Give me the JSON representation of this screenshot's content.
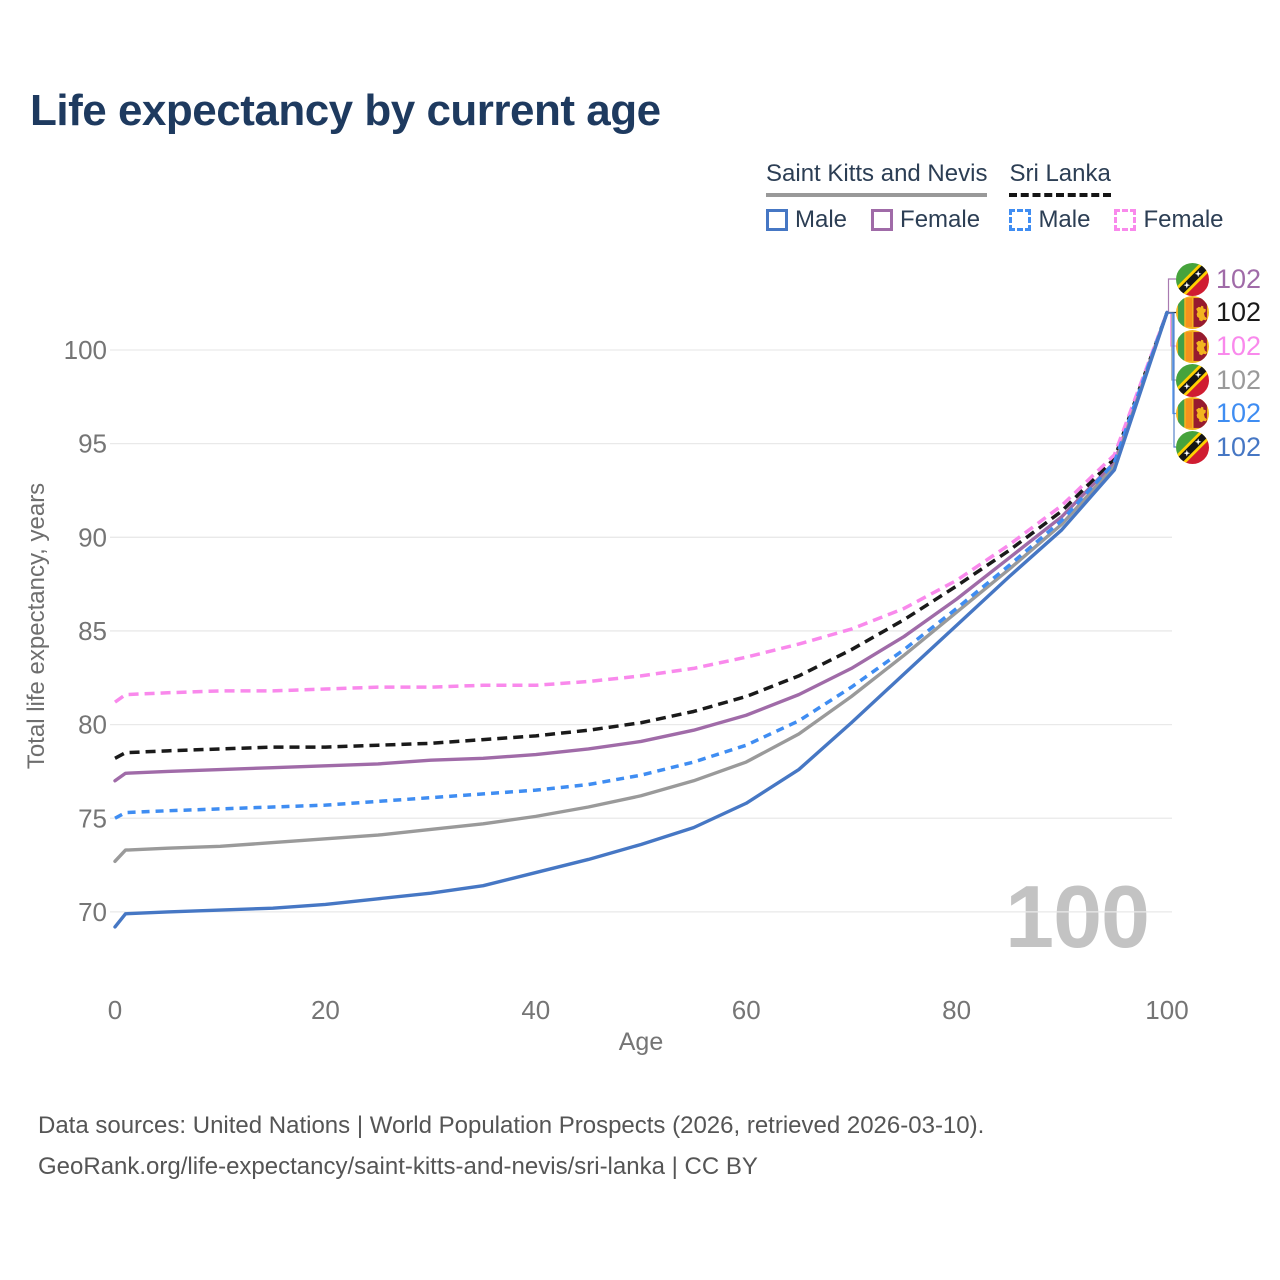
{
  "title": "Life expectancy by current age",
  "watermark": "100",
  "legend": {
    "groups": [
      {
        "name": "Saint Kitts and Nevis",
        "line_style": "solid",
        "line_color": "#999999",
        "items": [
          {
            "label": "Male",
            "series": "skn_male"
          },
          {
            "label": "Female",
            "series": "skn_female"
          }
        ]
      },
      {
        "name": "Sri Lanka",
        "line_style": "dashed",
        "line_color": "#151515",
        "items": [
          {
            "label": "Male",
            "series": "lk_male"
          },
          {
            "label": "Female",
            "series": "lk_female"
          }
        ]
      }
    ]
  },
  "chart_data": {
    "type": "line",
    "title": "Life expectancy by current age",
    "xlabel": "Age",
    "ylabel": "Total life expectancy, years",
    "xlim": [
      0,
      100
    ],
    "ylim": [
      68.5,
      103
    ],
    "xticks": [
      0,
      20,
      40,
      60,
      80,
      100
    ],
    "yticks": [
      70,
      75,
      80,
      85,
      90,
      95,
      100
    ],
    "grid": "horizontal-only",
    "legend_position": "top-right",
    "x": [
      0,
      1,
      5,
      10,
      15,
      20,
      25,
      30,
      35,
      40,
      45,
      50,
      55,
      60,
      65,
      70,
      75,
      80,
      85,
      90,
      95,
      100
    ],
    "series": [
      {
        "id": "skn_female",
        "name": "Saint Kitts and Nevis — Female",
        "country": "Saint Kitts and Nevis",
        "sex": "Female",
        "color": "#a06ba8",
        "dash": false,
        "flag": "kn",
        "end_label": "102",
        "values": [
          77.0,
          77.4,
          77.5,
          77.6,
          77.7,
          77.8,
          77.9,
          78.1,
          78.2,
          78.4,
          78.7,
          79.1,
          79.7,
          80.5,
          81.6,
          83.0,
          84.7,
          86.7,
          88.9,
          91.1,
          94.0,
          102.0
        ]
      },
      {
        "id": "lk_total",
        "name": "Sri Lanka — Total",
        "country": "Sri Lanka",
        "sex": "Total",
        "color": "#1a1a1a",
        "dash": true,
        "flag": "lk",
        "end_label": "102",
        "values": [
          78.2,
          78.5,
          78.6,
          78.7,
          78.8,
          78.8,
          78.9,
          79.0,
          79.2,
          79.4,
          79.7,
          80.1,
          80.7,
          81.5,
          82.6,
          84.0,
          85.6,
          87.4,
          89.3,
          91.4,
          94.2,
          102.0
        ]
      },
      {
        "id": "lk_female",
        "name": "Sri Lanka — Female",
        "country": "Sri Lanka",
        "sex": "Female",
        "color": "#f989ec",
        "dash": true,
        "flag": "lk",
        "end_label": "102",
        "values": [
          81.2,
          81.6,
          81.7,
          81.8,
          81.8,
          81.9,
          82.0,
          82.0,
          82.1,
          82.1,
          82.3,
          82.6,
          83.0,
          83.6,
          84.3,
          85.1,
          86.2,
          87.7,
          89.6,
          91.7,
          94.4,
          102.0
        ]
      },
      {
        "id": "skn_total",
        "name": "Saint Kitts and Nevis — Total",
        "country": "Saint Kitts and Nevis",
        "sex": "Total",
        "color": "#9a9a9a",
        "dash": false,
        "flag": "kn",
        "end_label": "102",
        "values": [
          72.7,
          73.3,
          73.4,
          73.5,
          73.7,
          73.9,
          74.1,
          74.4,
          74.7,
          75.1,
          75.6,
          76.2,
          77.0,
          78.0,
          79.5,
          81.5,
          83.7,
          86.0,
          88.3,
          90.7,
          93.8,
          102.0
        ]
      },
      {
        "id": "lk_male",
        "name": "Sri Lanka — Male",
        "country": "Sri Lanka",
        "sex": "Male",
        "color": "#3f8df2",
        "dash": true,
        "flag": "lk",
        "end_label": "102",
        "values": [
          75.0,
          75.3,
          75.4,
          75.5,
          75.6,
          75.7,
          75.9,
          76.1,
          76.3,
          76.5,
          76.8,
          77.3,
          78.0,
          78.9,
          80.2,
          82.0,
          84.0,
          86.2,
          88.5,
          90.9,
          94.0,
          102.0
        ]
      },
      {
        "id": "skn_male",
        "name": "Saint Kitts and Nevis — Male",
        "country": "Saint Kitts and Nevis",
        "sex": "Male",
        "color": "#4677c4",
        "dash": false,
        "flag": "kn",
        "end_label": "102",
        "values": [
          69.2,
          69.9,
          70.0,
          70.1,
          70.2,
          70.4,
          70.7,
          71.0,
          71.4,
          72.1,
          72.8,
          73.6,
          74.5,
          75.8,
          77.6,
          80.1,
          82.7,
          85.3,
          87.9,
          90.4,
          93.6,
          102.0
        ]
      }
    ]
  },
  "footer": {
    "line1": "Data sources: United Nations | World Population Prospects (2026, retrieved 2026-03-10).",
    "line2": "GeoRank.org/life-expectancy/saint-kitts-and-nevis/sri-lanka | CC BY"
  },
  "colors": {
    "title_text": "#1e3a5f",
    "legend_text": "#2c3e54",
    "axis_text": "#757575",
    "grid": "#e9e9e9",
    "footer_text": "#555555",
    "watermark": "#c3c3c3"
  }
}
